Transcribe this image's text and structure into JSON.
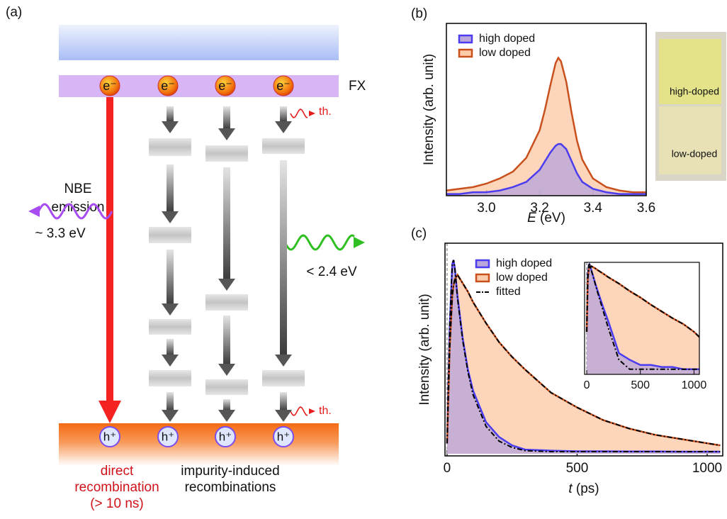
{
  "diagram": {
    "panel": "(a)",
    "band": "FX",
    "electron": "e⁻",
    "hole": "h⁺",
    "thermal": "th.",
    "nbe": [
      "NBE",
      "emission"
    ],
    "nbe_energy": "~ 3.3 eV",
    "defect_energy": "< 2.4 eV",
    "direct": [
      "direct",
      "recombination",
      "(> 10 ns)"
    ],
    "impurity": [
      "impurity-induced",
      "recombinations"
    ]
  },
  "photo": {
    "labels": [
      "high-doped",
      "low-doped"
    ]
  },
  "chart_data": [
    {
      "type": "area",
      "panel": "(b)",
      "ylabel": "Intensity (arb. unit)",
      "xlabel_var": "E",
      "xlabel_unit": "(eV)",
      "x": [
        2.85,
        2.9,
        2.95,
        3.0,
        3.05,
        3.1,
        3.15,
        3.2,
        3.22,
        3.24,
        3.26,
        3.27,
        3.28,
        3.3,
        3.32,
        3.34,
        3.36,
        3.4,
        3.45,
        3.5,
        3.55,
        3.6
      ],
      "series": [
        {
          "name": "high doped",
          "color": "#4b3cf0",
          "fill": "#b9a6da",
          "values": [
            0.01,
            0.01,
            0.02,
            0.02,
            0.03,
            0.05,
            0.08,
            0.15,
            0.2,
            0.25,
            0.29,
            0.3,
            0.3,
            0.27,
            0.2,
            0.13,
            0.08,
            0.04,
            0.02,
            0.01,
            0.01,
            0.01
          ]
        },
        {
          "name": "low doped",
          "color": "#c9501c",
          "fill": "#fccbaa",
          "values": [
            0.03,
            0.04,
            0.05,
            0.07,
            0.1,
            0.14,
            0.22,
            0.38,
            0.5,
            0.64,
            0.77,
            0.8,
            0.78,
            0.66,
            0.48,
            0.32,
            0.21,
            0.1,
            0.05,
            0.03,
            0.02,
            0.02
          ]
        }
      ],
      "xlim": [
        2.85,
        3.6
      ],
      "xticks": [
        {
          "value": 3,
          "label": "3.0"
        },
        3.2,
        3.4,
        3.6
      ],
      "ylim": [
        0,
        1
      ]
    },
    {
      "type": "area",
      "panel": "(c)",
      "ylabel": "Intensity (arb. unit)",
      "xlabel_var": "t",
      "xlabel_unit": "(ps)",
      "x": [
        0,
        10,
        20,
        25,
        30,
        40,
        60,
        80,
        100,
        150,
        200,
        250,
        300,
        400,
        500,
        600,
        700,
        800,
        900,
        1000,
        1050
      ],
      "series": [
        {
          "name": "high doped",
          "color": "#4b3cf0",
          "fill": "#b9a6da",
          "values": [
            0.05,
            0.6,
            0.9,
            0.92,
            0.88,
            0.75,
            0.55,
            0.4,
            0.3,
            0.15,
            0.08,
            0.04,
            0.02,
            0.015,
            0.012,
            0.012,
            0.011,
            0.011,
            0.01,
            0.01,
            0.01
          ]
        },
        {
          "name": "low doped",
          "color": "#c9501c",
          "fill": "#fccbaa",
          "values": [
            0.05,
            0.5,
            0.75,
            0.8,
            0.83,
            0.85,
            0.81,
            0.77,
            0.72,
            0.62,
            0.53,
            0.46,
            0.4,
            0.29,
            0.22,
            0.16,
            0.12,
            0.09,
            0.07,
            0.05,
            0.04
          ]
        },
        {
          "name": "fitted",
          "color": "#000000",
          "dashed": true,
          "values": [
            0.05,
            0.5,
            0.75,
            0.8,
            0.83,
            0.85,
            0.81,
            0.77,
            0.72,
            0.62,
            0.53,
            0.46,
            0.4,
            0.29,
            0.22,
            0.16,
            0.12,
            0.09,
            0.07,
            0.05,
            0.04
          ]
        },
        {
          "color": "#000000",
          "dashed": true,
          "values": [
            0.05,
            0.6,
            0.9,
            0.92,
            0.88,
            0.74,
            0.54,
            0.39,
            0.28,
            0.13,
            0.06,
            0.03,
            0.015,
            0.01,
            0.01,
            0.01,
            0.01,
            0.01,
            0.01,
            0.01,
            0.01
          ]
        }
      ],
      "xlim": [
        -8,
        1060
      ],
      "xticks": [
        0,
        500,
        1000
      ],
      "ylim": [
        -0.01,
        1
      ],
      "inset": {
        "xlim": [
          -20,
          1050
        ],
        "xticks": [
          0,
          500,
          1000
        ],
        "ylim": [
          0.008,
          1
        ],
        "log_y": true
      }
    }
  ]
}
